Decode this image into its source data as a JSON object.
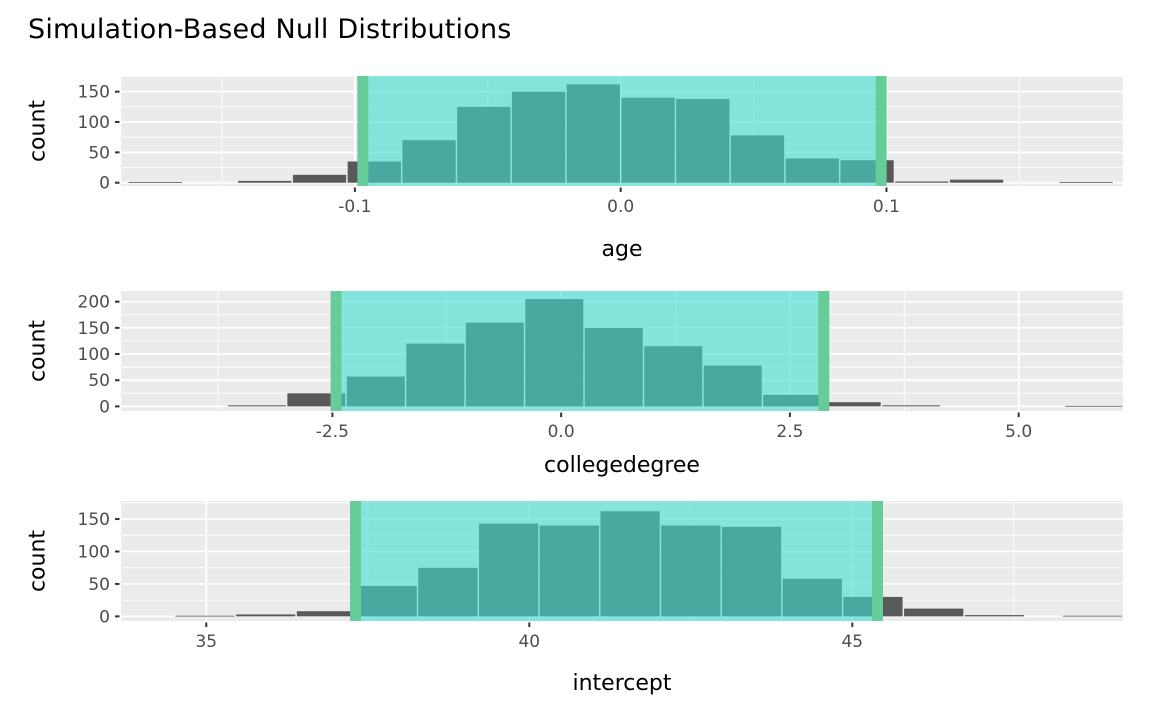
{
  "title": "Simulation-Based Null Distributions",
  "colors": {
    "page_bg": "#FFFFFF",
    "panel_bg": "#EBEBEB",
    "gridline": "#FFFFFF",
    "bar_fill": "#595959",
    "ci_band_fill": "#40E0D0",
    "ci_band_alpha": 0.6,
    "ci_line": "#66CC99",
    "axis_text": "#4D4D4D",
    "tick_mark": "#333333",
    "title_text": "#000000"
  },
  "chart_data": [
    {
      "type": "bar",
      "subtype": "histogram",
      "variable": "age",
      "xlabel": "age",
      "ylabel": "count",
      "x_domain": [
        -0.188,
        0.189
      ],
      "y_domain": [
        -5.4,
        175.8
      ],
      "x_ticks": [
        {
          "v": -0.1,
          "label": "-0.1"
        },
        {
          "v": 0.0,
          "label": "0.0"
        },
        {
          "v": 0.1,
          "label": "0.1"
        }
      ],
      "y_ticks": [
        {
          "v": 0,
          "label": "0"
        },
        {
          "v": 50,
          "label": "50"
        },
        {
          "v": 100,
          "label": "100"
        },
        {
          "v": 150,
          "label": "150"
        }
      ],
      "x_minor": [
        -0.15,
        -0.05,
        0.05,
        0.15
      ],
      "y_minor": [
        25,
        75,
        125,
        175
      ],
      "ci": [
        -0.097,
        0.098
      ],
      "bins": [
        [
          -0.1854,
          -0.1648,
          1
        ],
        [
          -0.1442,
          -0.1236,
          3
        ],
        [
          -0.1236,
          -0.103,
          13
        ],
        [
          -0.103,
          -0.0824,
          35
        ],
        [
          -0.0824,
          -0.0618,
          70
        ],
        [
          -0.0618,
          -0.0412,
          125
        ],
        [
          -0.0412,
          -0.0206,
          150
        ],
        [
          -0.0206,
          0.0,
          162
        ],
        [
          0.0,
          0.0206,
          140
        ],
        [
          0.0206,
          0.0412,
          138
        ],
        [
          0.0412,
          0.0618,
          78
        ],
        [
          0.0618,
          0.0824,
          40
        ],
        [
          0.0824,
          0.103,
          37
        ],
        [
          0.103,
          0.1236,
          2
        ],
        [
          0.1236,
          0.1442,
          5
        ],
        [
          0.1648,
          0.1854,
          1
        ]
      ]
    },
    {
      "type": "bar",
      "subtype": "histogram",
      "variable": "collegedegree",
      "xlabel": "collegedegree",
      "ylabel": "count",
      "x_domain": [
        -4.81,
        6.14
      ],
      "y_domain": [
        -8.8,
        220.4
      ],
      "x_ticks": [
        {
          "v": -2.5,
          "label": "-2.5"
        },
        {
          "v": 0.0,
          "label": "0.0"
        },
        {
          "v": 2.5,
          "label": "2.5"
        },
        {
          "v": 5.0,
          "label": "5.0"
        }
      ],
      "y_ticks": [
        {
          "v": 0,
          "label": "0"
        },
        {
          "v": 50,
          "label": "50"
        },
        {
          "v": 100,
          "label": "100"
        },
        {
          "v": 150,
          "label": "150"
        },
        {
          "v": 200,
          "label": "200"
        }
      ],
      "x_minor": [
        -3.75,
        -1.25,
        1.25,
        3.75
      ],
      "y_minor": [
        25,
        75,
        125,
        175
      ],
      "ci": [
        -2.46,
        2.87
      ],
      "bins": [
        [
          -3.65,
          -3.0,
          2
        ],
        [
          -3.0,
          -2.35,
          25
        ],
        [
          -2.35,
          -1.7,
          57
        ],
        [
          -1.7,
          -1.05,
          120
        ],
        [
          -1.05,
          -0.4,
          160
        ],
        [
          -0.4,
          0.25,
          205
        ],
        [
          0.25,
          0.9,
          150
        ],
        [
          0.9,
          1.55,
          115
        ],
        [
          1.55,
          2.2,
          78
        ],
        [
          2.2,
          2.85,
          22
        ],
        [
          2.85,
          3.5,
          8
        ],
        [
          3.5,
          4.15,
          2
        ],
        [
          5.5,
          6.14,
          1
        ]
      ]
    },
    {
      "type": "bar",
      "subtype": "histogram",
      "variable": "intercept",
      "xlabel": "intercept",
      "ylabel": "count",
      "x_domain": [
        33.68,
        49.19
      ],
      "y_domain": [
        -7.1,
        177.8
      ],
      "x_ticks": [
        {
          "v": 35,
          "label": "35"
        },
        {
          "v": 40,
          "label": "40"
        },
        {
          "v": 45,
          "label": "45"
        }
      ],
      "y_ticks": [
        {
          "v": 0,
          "label": "0"
        },
        {
          "v": 50,
          "label": "50"
        },
        {
          "v": 100,
          "label": "100"
        },
        {
          "v": 150,
          "label": "150"
        }
      ],
      "x_minor": [
        37.5,
        42.5,
        47.5
      ],
      "y_minor": [
        25,
        75,
        125,
        175
      ],
      "ci": [
        37.31,
        45.39
      ],
      "bins": [
        [
          34.51,
          35.45,
          1
        ],
        [
          35.45,
          36.39,
          3
        ],
        [
          36.39,
          37.33,
          8
        ],
        [
          37.33,
          38.27,
          47
        ],
        [
          38.27,
          39.21,
          75
        ],
        [
          39.21,
          40.15,
          143
        ],
        [
          40.15,
          41.09,
          140
        ],
        [
          41.09,
          42.03,
          162
        ],
        [
          42.03,
          42.97,
          140
        ],
        [
          42.97,
          43.91,
          138
        ],
        [
          43.91,
          44.85,
          58
        ],
        [
          44.85,
          45.79,
          30
        ],
        [
          45.79,
          46.73,
          12
        ],
        [
          46.73,
          47.67,
          2
        ],
        [
          48.25,
          49.19,
          1
        ]
      ]
    }
  ]
}
